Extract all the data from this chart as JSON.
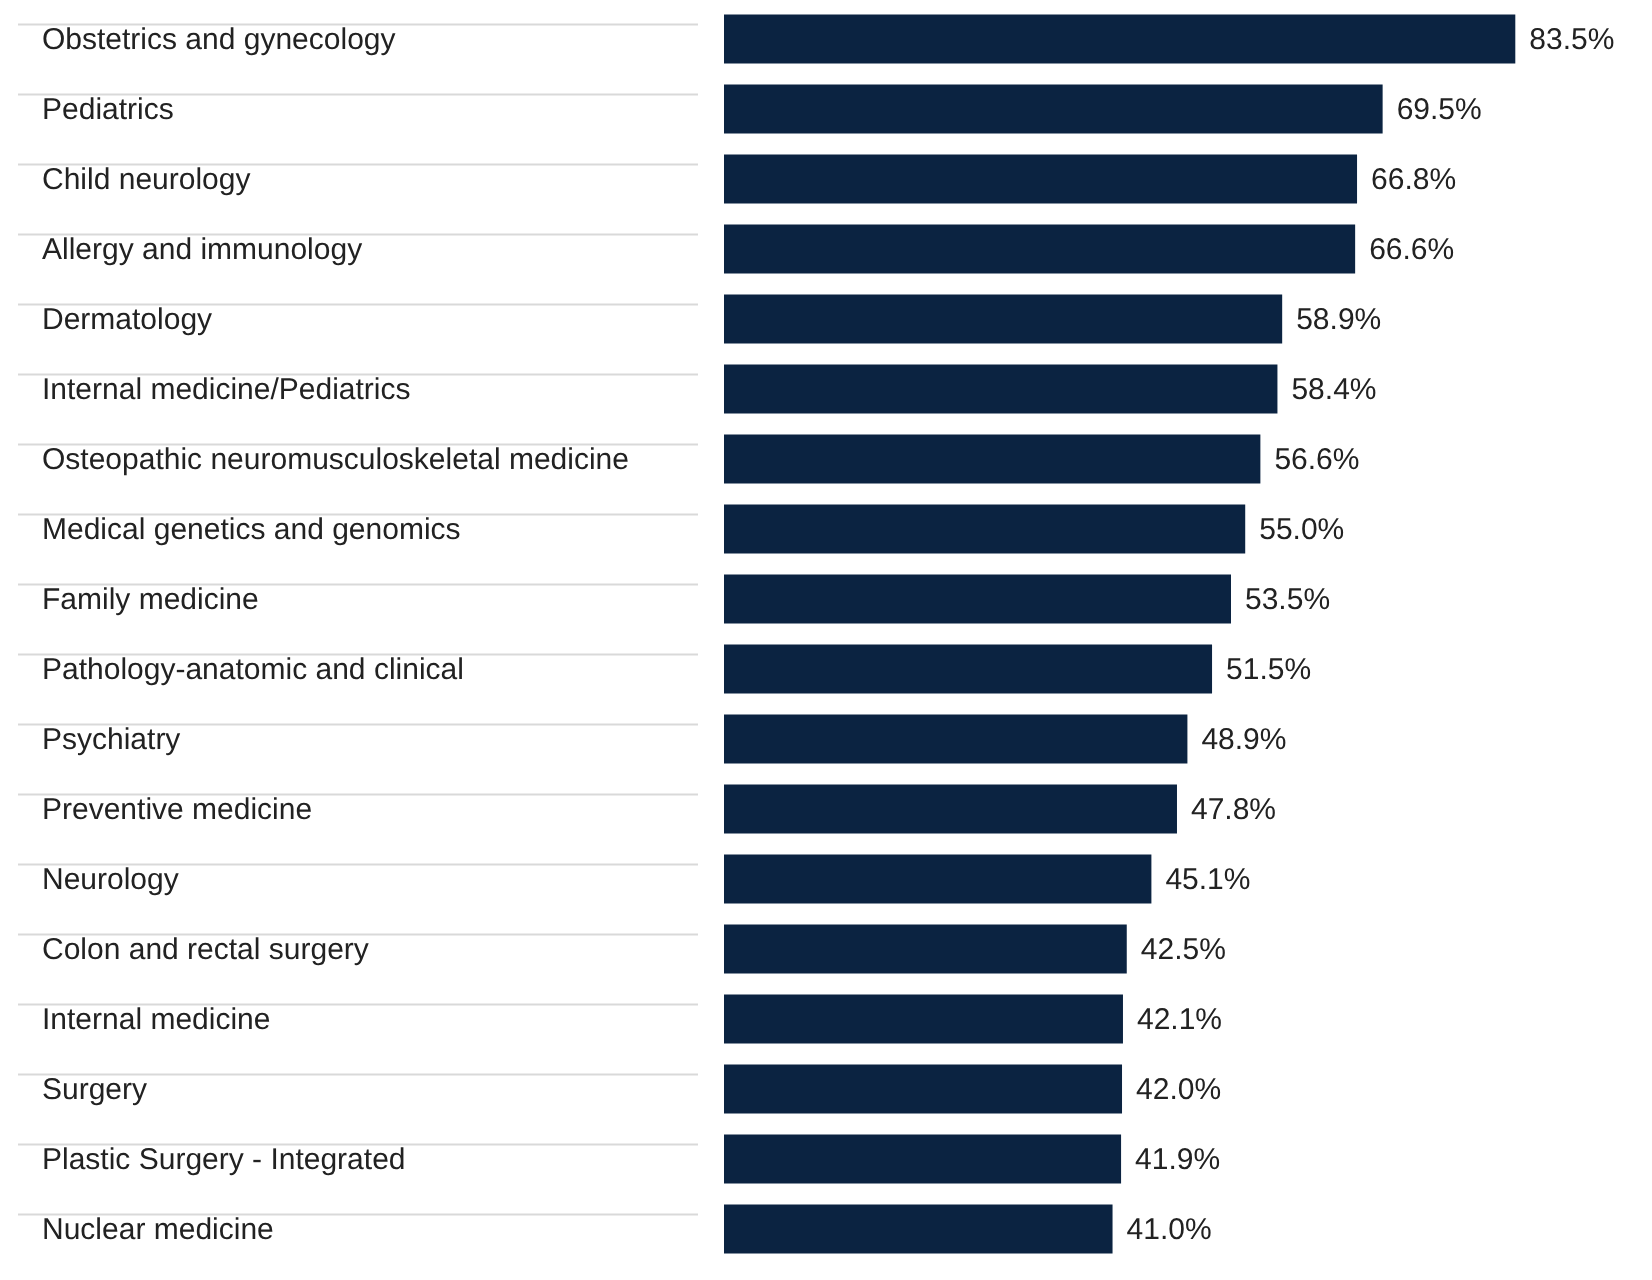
{
  "chart_data": {
    "type": "bar",
    "orientation": "horizontal",
    "data_labels": true,
    "categories": [
      "Obstetrics and gynecology",
      "Pediatrics",
      "Child neurology",
      "Allergy and immunology",
      "Dermatology",
      "Internal medicine/Pediatrics",
      "Osteopathic neuromusculoskeletal medicine",
      "Medical genetics and genomics",
      "Family medicine",
      "Pathology-anatomic and clinical",
      "Psychiatry",
      "Preventive medicine",
      "Neurology",
      "Colon and rectal surgery",
      "Internal medicine",
      "Surgery",
      "Plastic Surgery - Integrated",
      "Nuclear medicine"
    ],
    "values": [
      83.5,
      69.5,
      66.8,
      66.6,
      58.9,
      58.4,
      56.6,
      55.0,
      53.5,
      51.5,
      48.9,
      47.8,
      45.1,
      42.5,
      42.1,
      42.0,
      41.9,
      41.0
    ],
    "value_labels": [
      "83.5%",
      "69.5%",
      "66.8%",
      "66.6%",
      "58.9%",
      "58.4%",
      "56.6%",
      "55.0%",
      "53.5%",
      "51.5%",
      "48.9%",
      "47.8%",
      "45.1%",
      "42.5%",
      "42.1%",
      "42.0%",
      "41.9%",
      "41.0%"
    ],
    "color": "#0b2341"
  }
}
